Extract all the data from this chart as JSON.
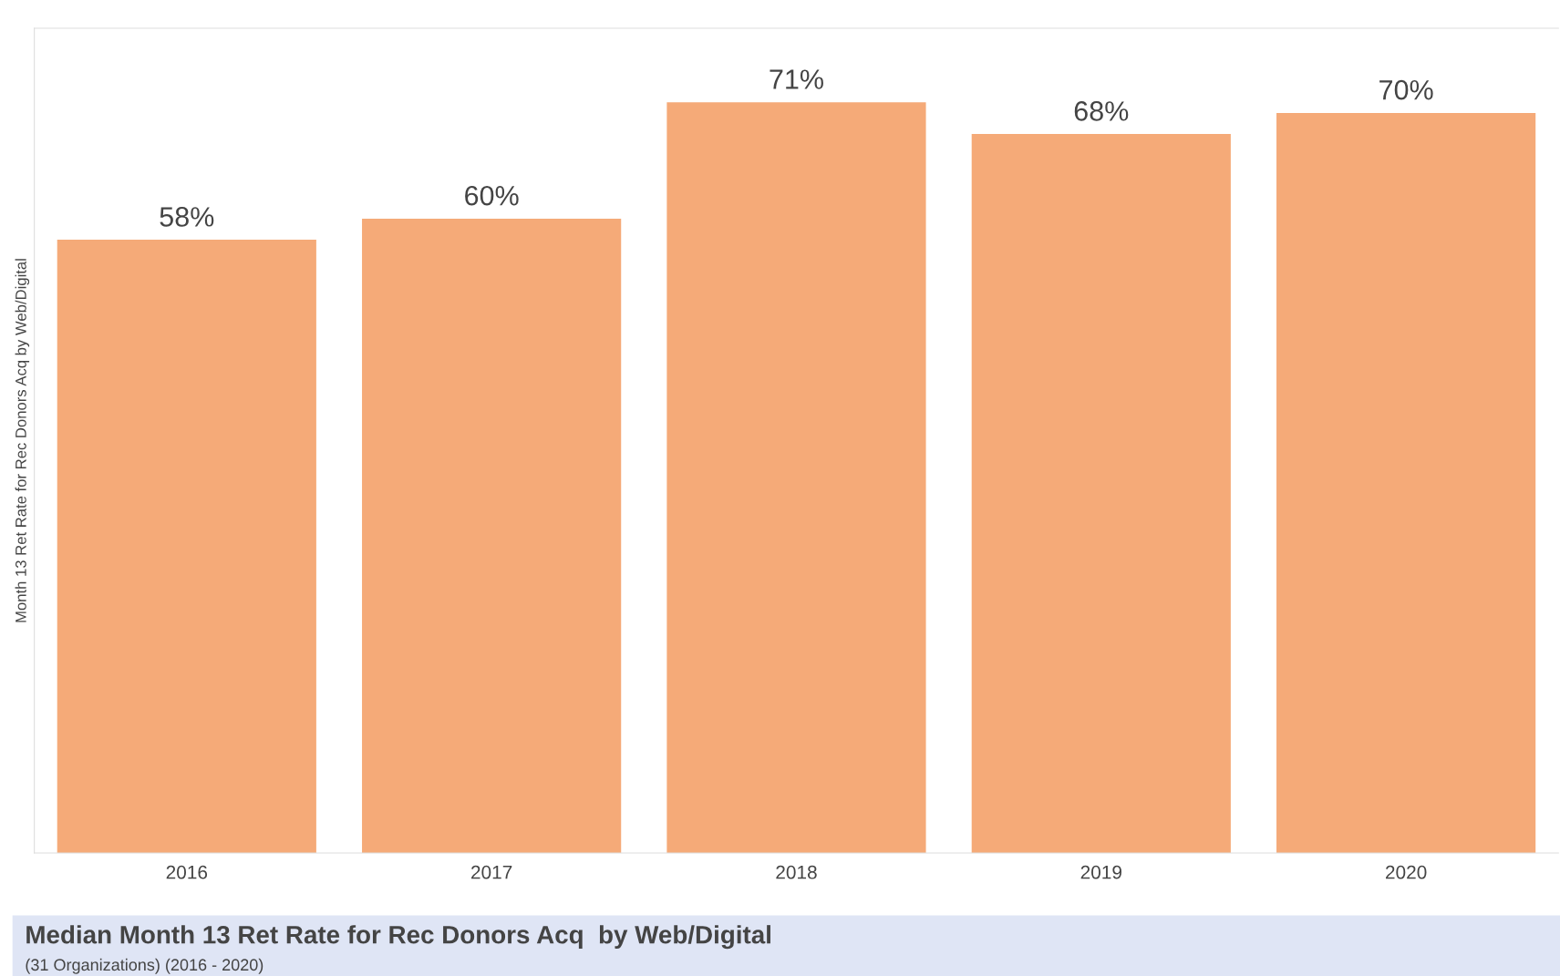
{
  "chart_data": {
    "type": "bar",
    "title": "Median Month 13 Ret Rate for Rec Donors Acq  by Web/Digital",
    "subtitle": "(31 Organizations) (2016 - 2020)",
    "ylabel": "Month 13 Ret Rate for Rec Donors Acq by Web/Digital",
    "categories": [
      "2016",
      "2017",
      "2018",
      "2019",
      "2020"
    ],
    "values": [
      58,
      60,
      71,
      68,
      70
    ],
    "value_labels": [
      "58%",
      "60%",
      "71%",
      "68%",
      "70%"
    ],
    "color": "#f5aa78",
    "ylim": [
      0,
      78
    ],
    "grid": false,
    "legend": false
  }
}
